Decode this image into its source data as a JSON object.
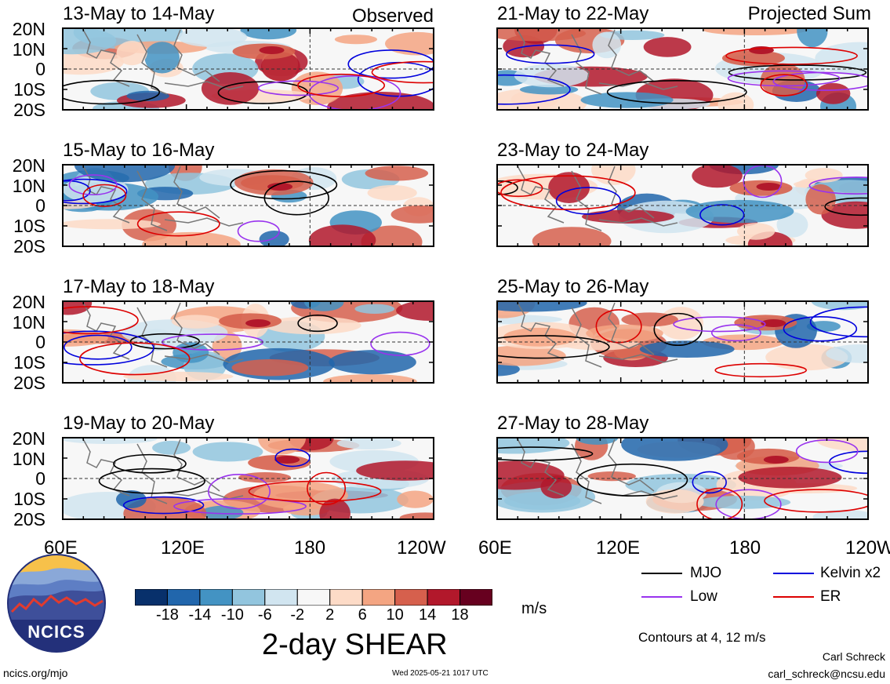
{
  "panels": [
    {
      "period": "13-May to 14-May",
      "label": "Observed"
    },
    {
      "period": "15-May to 16-May",
      "label": ""
    },
    {
      "period": "17-May to 18-May",
      "label": ""
    },
    {
      "period": "19-May to 20-May",
      "label": ""
    },
    {
      "period": "21-May to 22-May",
      "label": "Projected Sum"
    },
    {
      "period": "23-May to 24-May",
      "label": ""
    },
    {
      "period": "25-May to 26-May",
      "label": ""
    },
    {
      "period": "27-May to 28-May",
      "label": ""
    }
  ],
  "lat_labels": [
    "20N",
    "10N",
    "0",
    "10S",
    "20S"
  ],
  "lon_labels": [
    "60E",
    "120E",
    "180",
    "120W"
  ],
  "colorbar": {
    "ticks": [
      "-18",
      "-14",
      "-10",
      "-6",
      "-2",
      "2",
      "6",
      "10",
      "14",
      "18"
    ],
    "colors": [
      "#08306b",
      "#2166ac",
      "#4393c3",
      "#92c5de",
      "#d1e5f0",
      "#f7f7f7",
      "#fddbc7",
      "#f4a582",
      "#d6604d",
      "#b2182b",
      "#67001f"
    ],
    "units": "m/s",
    "title": "2-day SHEAR"
  },
  "legend": {
    "items": [
      {
        "label": "MJO",
        "color": "#000000"
      },
      {
        "label": "Kelvin x2",
        "color": "#0000dd"
      },
      {
        "label": "Low",
        "color": "#9933ee"
      },
      {
        "label": "ER",
        "color": "#dd0000"
      }
    ],
    "contours_note": "Contours at 4, 12 m/s"
  },
  "logo": {
    "text": "NCICS"
  },
  "footer": {
    "url": "ncics.org/mjo",
    "timestamp": "Wed 2025-05-21 1017 UTC",
    "author": "Carl Schreck",
    "email": "carl_schreck@ncsu.edu"
  }
}
